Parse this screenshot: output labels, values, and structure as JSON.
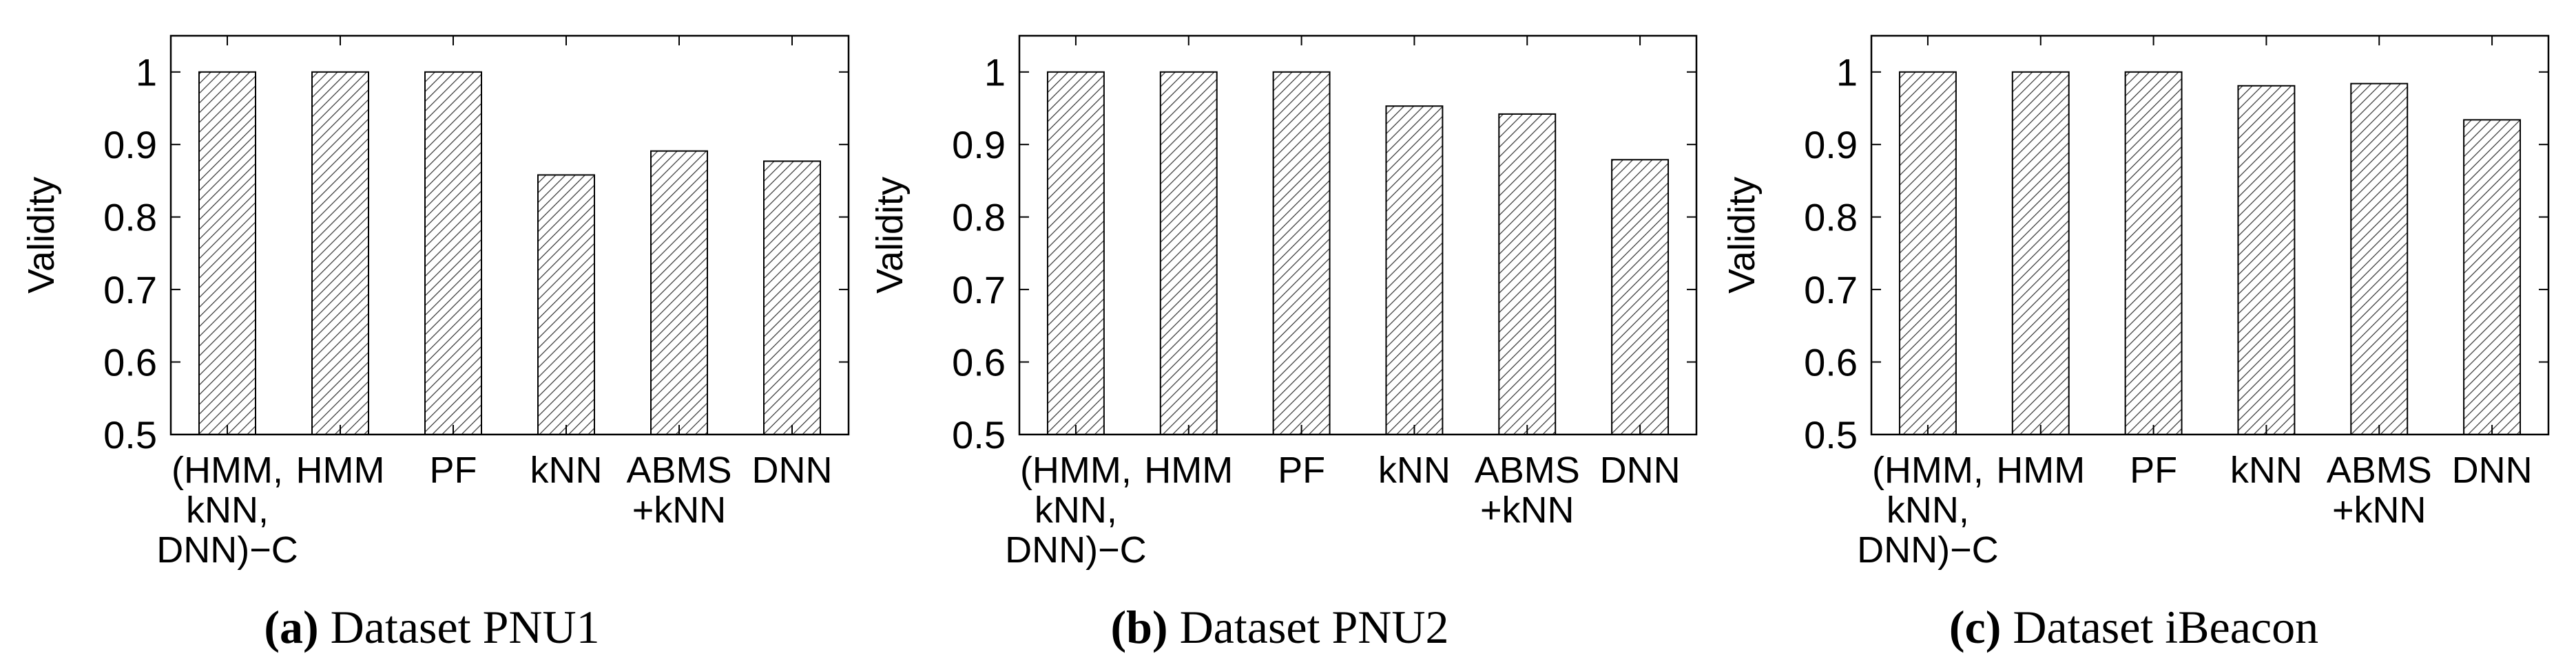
{
  "chart_data": [
    {
      "type": "bar",
      "panel": "a",
      "caption": "Dataset PNU1",
      "ylabel": "Validity",
      "xlabel": "",
      "ylim": [
        0.5,
        1.05
      ],
      "yticks": [
        0.5,
        0.6,
        0.7,
        0.8,
        0.9,
        1
      ],
      "grid": false,
      "hatch": "diagonal",
      "categories": [
        [
          "(HMM,",
          "kNN,",
          "DNN)−C"
        ],
        [
          "HMM"
        ],
        [
          "PF"
        ],
        [
          "kNN"
        ],
        [
          "ABMS",
          "+kNN"
        ],
        [
          "DNN"
        ]
      ],
      "values": [
        1.0,
        1.0,
        1.0,
        0.858,
        0.891,
        0.877
      ]
    },
    {
      "type": "bar",
      "panel": "b",
      "caption": "Dataset PNU2",
      "ylabel": "Validity",
      "xlabel": "",
      "ylim": [
        0.5,
        1.05
      ],
      "yticks": [
        0.5,
        0.6,
        0.7,
        0.8,
        0.9,
        1
      ],
      "grid": false,
      "hatch": "diagonal",
      "categories": [
        [
          "(HMM,",
          "kNN,",
          "DNN)−C"
        ],
        [
          "HMM"
        ],
        [
          "PF"
        ],
        [
          "kNN"
        ],
        [
          "ABMS",
          "+kNN"
        ],
        [
          "DNN"
        ]
      ],
      "values": [
        1.0,
        1.0,
        1.0,
        0.953,
        0.942,
        0.879
      ]
    },
    {
      "type": "bar",
      "panel": "c",
      "caption": "Dataset iBeacon",
      "ylabel": "Validity",
      "xlabel": "",
      "ylim": [
        0.5,
        1.05
      ],
      "yticks": [
        0.5,
        0.6,
        0.7,
        0.8,
        0.9,
        1
      ],
      "grid": false,
      "hatch": "diagonal",
      "categories": [
        [
          "(HMM,",
          "kNN,",
          "DNN)−C"
        ],
        [
          "HMM"
        ],
        [
          "PF"
        ],
        [
          "kNN"
        ],
        [
          "ABMS",
          "+kNN"
        ],
        [
          "DNN"
        ]
      ],
      "values": [
        1.0,
        1.0,
        1.0,
        0.981,
        0.984,
        0.934
      ]
    }
  ],
  "captions": [
    {
      "letter": "(a)",
      "text": " Dataset PNU1"
    },
    {
      "letter": "(b)",
      "text": " Dataset PNU2"
    },
    {
      "letter": "(c)",
      "text": " Dataset iBeacon"
    }
  ]
}
